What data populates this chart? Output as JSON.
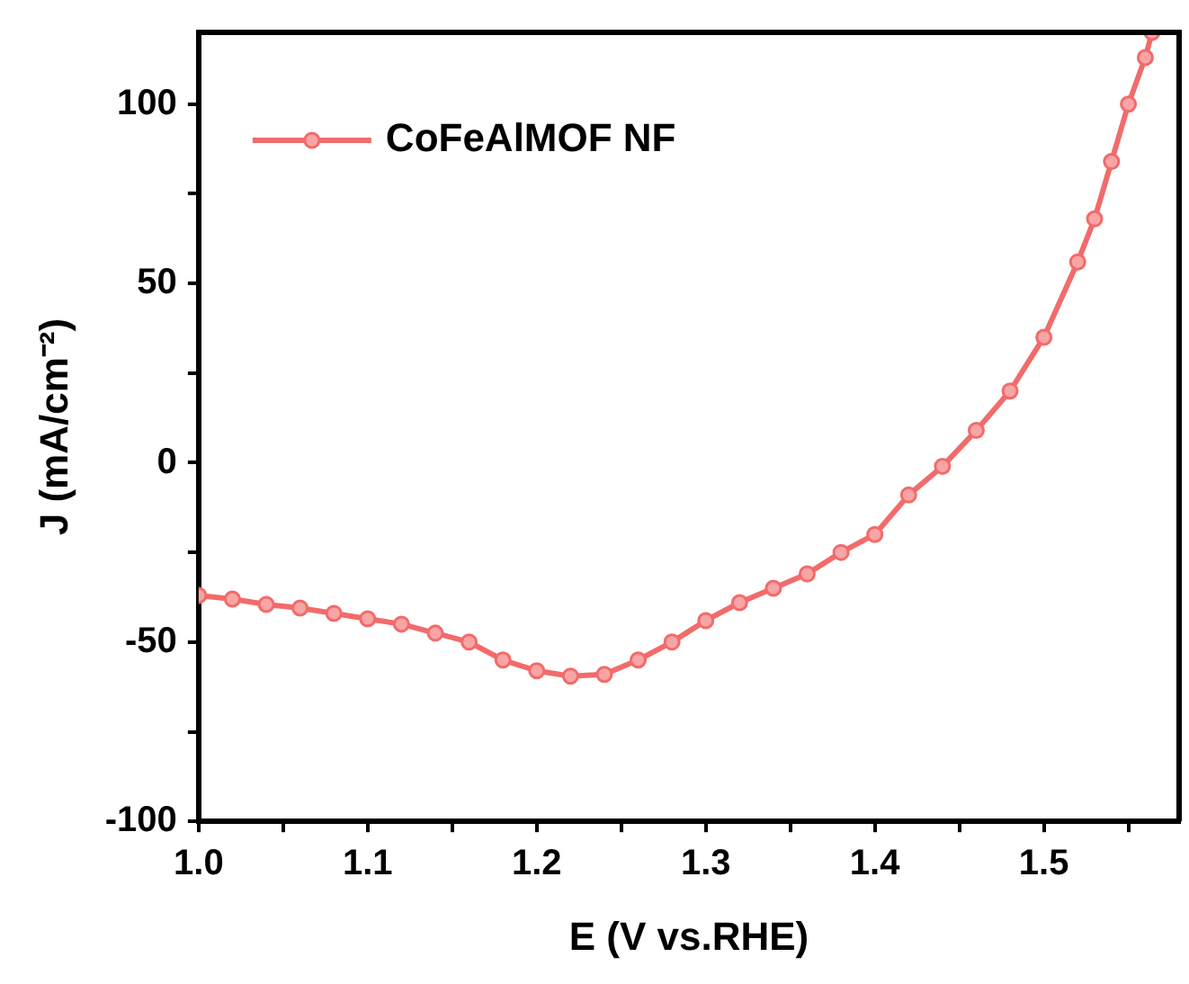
{
  "chart_data": {
    "type": "line",
    "xlabel": "E (V vs.RHE)",
    "ylabel": "J (mA/cm⁻²)",
    "xlim": [
      1.0,
      1.58
    ],
    "ylim": [
      -100,
      120
    ],
    "xticks": [
      {
        "value": 1.0,
        "label": "1.0"
      },
      {
        "value": 1.05,
        "label": null
      },
      1.1,
      {
        "value": 1.15,
        "label": null
      },
      1.2,
      {
        "value": 1.25,
        "label": null
      },
      1.3,
      {
        "value": 1.35,
        "label": null
      },
      1.4,
      {
        "value": 1.45,
        "label": null
      },
      1.5,
      {
        "value": 1.55,
        "label": null
      }
    ],
    "yticks": [
      -100,
      {
        "value": -75,
        "label": null
      },
      -50,
      {
        "value": -25,
        "label": null
      },
      0,
      {
        "value": 25,
        "label": null
      },
      50,
      {
        "value": 75,
        "label": null
      },
      100
    ],
    "grid": false,
    "legend": "top left",
    "marker": "circle",
    "line_style": "solid",
    "series": [
      {
        "name": "CoFeAlMOF NF",
        "color": "#f26b6b",
        "x": [
          1.0,
          1.02,
          1.04,
          1.06,
          1.08,
          1.1,
          1.12,
          1.14,
          1.16,
          1.18,
          1.2,
          1.22,
          1.24,
          1.26,
          1.28,
          1.3,
          1.32,
          1.34,
          1.36,
          1.38,
          1.4,
          1.42,
          1.44,
          1.46,
          1.48,
          1.5,
          1.52,
          1.53,
          1.54,
          1.55,
          1.56,
          1.564
        ],
        "values": [
          -37,
          -38,
          -39.5,
          -40.5,
          -42,
          -43.5,
          -45,
          -47.5,
          -50,
          -55,
          -58,
          -59.5,
          -59,
          -55,
          -50,
          -44,
          -39,
          -35,
          -31,
          -25,
          -20,
          -9,
          -1,
          9,
          20,
          35,
          56,
          68,
          84,
          100,
          113,
          120
        ]
      }
    ]
  }
}
